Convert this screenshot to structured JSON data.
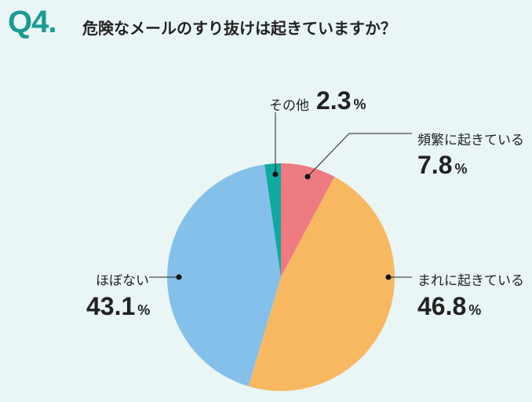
{
  "chart_data": {
    "type": "pie",
    "question_number": "Q4.",
    "title": "危険なメールのすり抜けは起きていますか？",
    "slices": [
      {
        "label": "頻繁に起きている",
        "value": 7.8,
        "color": "#ee7b82"
      },
      {
        "label": "まれに起きている",
        "value": 46.8,
        "color": "#f8b862"
      },
      {
        "label": "ほぼない",
        "value": 43.1,
        "color": "#85c0ea"
      },
      {
        "label": "その他",
        "value": 2.3,
        "color": "#0fa9a0"
      }
    ],
    "unit": "%",
    "start": "top",
    "direction": "clockwise"
  }
}
